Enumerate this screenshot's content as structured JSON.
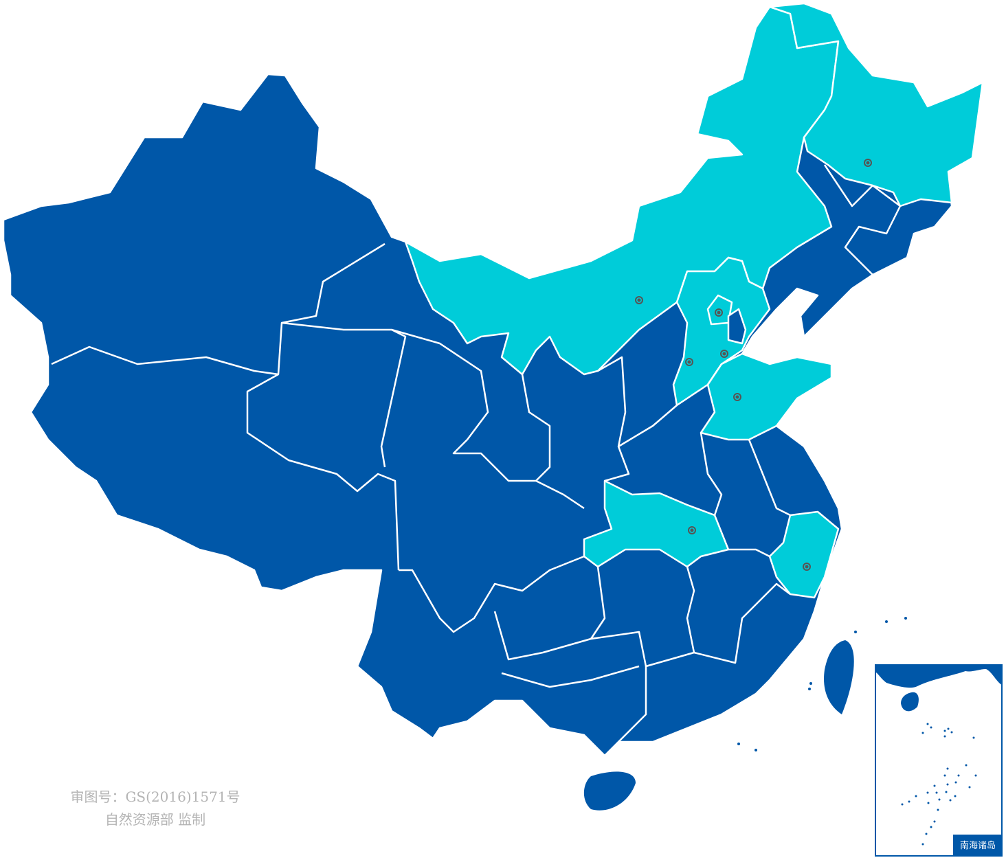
{
  "colors": {
    "base": "#0057A8",
    "highlight": "#00CCD9",
    "border": "#ffffff",
    "marker": "#555555",
    "credit_text": "#b4b4b4"
  },
  "credit": {
    "line1": "审图号：GS(2016)1571号",
    "line2": "自然资源部 监制"
  },
  "inset": {
    "label": "南海诸岛"
  },
  "marker_icon": "target-circle-icon"
}
